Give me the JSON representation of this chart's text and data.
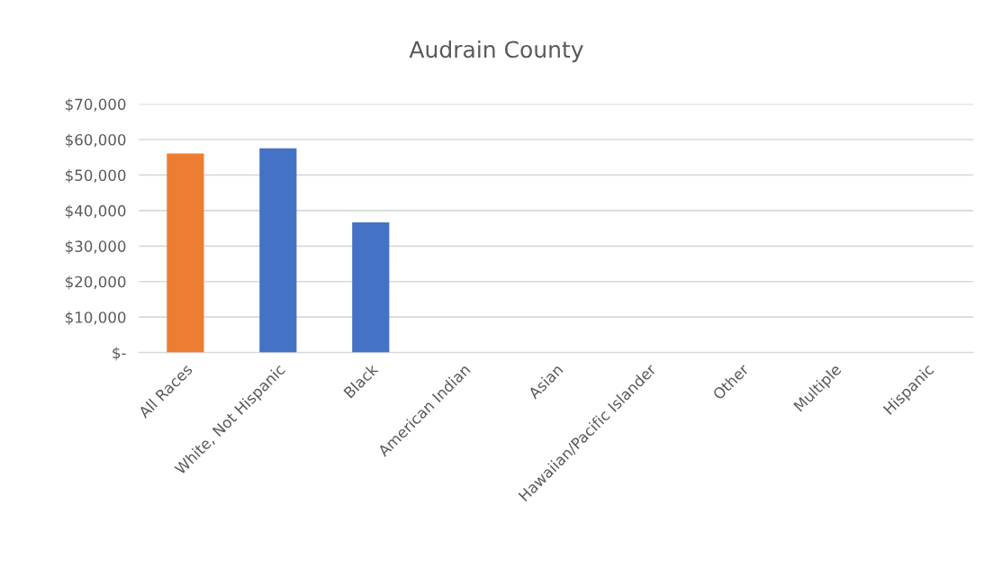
{
  "chart_data": {
    "type": "bar",
    "title": "Audrain County",
    "categories": [
      "All Races",
      "White, Not Hispanic",
      "Black",
      "American Indian",
      "Asian",
      "Hawaiian/Pacific Islander",
      "Other",
      "Multiple",
      "Hispanic"
    ],
    "values": [
      56100,
      57500,
      36700,
      null,
      null,
      null,
      null,
      null,
      null
    ],
    "colors": [
      "#ed7d31",
      "#4472c4",
      "#4472c4",
      "#4472c4",
      "#4472c4",
      "#4472c4",
      "#4472c4",
      "#4472c4",
      "#4472c4"
    ],
    "ylim": [
      0,
      70000
    ],
    "yticks": [
      {
        "value": 0,
        "label": "$-"
      },
      {
        "value": 10000,
        "label": "$10,000"
      },
      {
        "value": 20000,
        "label": "$20,000"
      },
      {
        "value": 30000,
        "label": "$30,000"
      },
      {
        "value": 40000,
        "label": "$40,000"
      },
      {
        "value": 50000,
        "label": "$50,000"
      },
      {
        "value": 60000,
        "label": "$60,000"
      },
      {
        "value": 70000,
        "label": "$70,000"
      }
    ],
    "grid": "y",
    "legend": false
  }
}
